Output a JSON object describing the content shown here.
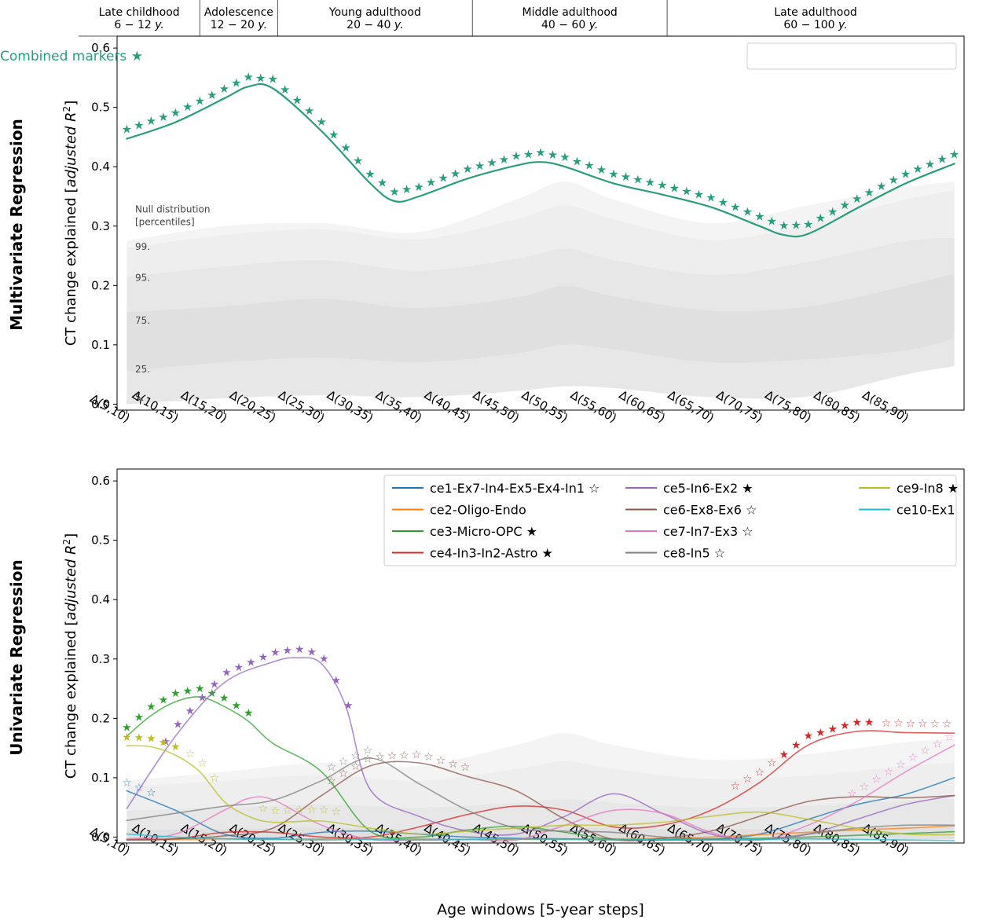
{
  "figure": {
    "stages": [
      {
        "name": "Late childhood",
        "range": "6 − 12 y.",
        "from": 5,
        "to": 12.5
      },
      {
        "name": "Adolescence",
        "range": "12 − 20 y.",
        "from": 12.5,
        "to": 20.5
      },
      {
        "name": "Young adulthood",
        "range": "20 − 40 y.",
        "from": 20.5,
        "to": 40.5
      },
      {
        "name": "Middle adulthood",
        "range": "40 − 60 y.",
        "from": 40.5,
        "to": 60.5
      },
      {
        "name": "Late adulthood",
        "range": "60 − 100 y.",
        "from": 60.5,
        "to": 90
      }
    ],
    "row_labels": {
      "top": "Multivariate Regression",
      "bottom": "Univariate Regression"
    },
    "ylabel": "CT change explained [adjusted R²]",
    "xlabel": "Age windows [5-year steps]",
    "null_title": [
      "Null distribution",
      "[percentiles]"
    ],
    "percentile_labels": [
      {
        "label": "99.",
        "y": 0.265
      },
      {
        "label": "95.",
        "y": 0.213
      },
      {
        "label": "75.",
        "y": 0.141
      },
      {
        "label": "25.",
        "y": 0.059
      },
      {
        "label": "5.",
        "y": 0.011
      }
    ]
  },
  "chart_data": [
    {
      "type": "line",
      "ylim": [
        -0.01,
        0.62
      ],
      "yticks": [
        0.0,
        0.1,
        0.2,
        0.3,
        0.4,
        0.5,
        0.6
      ],
      "x_windows": [
        "Δ(5,10)",
        "Δ(10,15)",
        "Δ(15,20)",
        "Δ(20,25)",
        "Δ(25,30)",
        "Δ(30,35)",
        "Δ(35,40)",
        "Δ(40,45)",
        "Δ(45,50)",
        "Δ(50,55)",
        "Δ(55,60)",
        "Δ(60,65)",
        "Δ(65,70)",
        "Δ(70,75)",
        "Δ(75,80)",
        "Δ(80,85)",
        "Δ(85,90)"
      ],
      "legend": {
        "placement": "top-right"
      },
      "null_bands": {
        "x": [
          5,
          15,
          25,
          35,
          45,
          50,
          55,
          65,
          75,
          85,
          90
        ],
        "p5": [
          0.0,
          0.01,
          0.015,
          0.012,
          0.022,
          0.03,
          0.027,
          0.012,
          0.013,
          0.05,
          0.064
        ],
        "p25": [
          0.055,
          0.07,
          0.078,
          0.07,
          0.085,
          0.1,
          0.092,
          0.07,
          0.075,
          0.09,
          0.11
        ],
        "p75": [
          0.155,
          0.165,
          0.178,
          0.162,
          0.18,
          0.2,
          0.182,
          0.158,
          0.165,
          0.2,
          0.22
        ],
        "p95": [
          0.215,
          0.232,
          0.243,
          0.225,
          0.245,
          0.262,
          0.243,
          0.218,
          0.24,
          0.275,
          0.28
        ],
        "p99": [
          0.263,
          0.285,
          0.295,
          0.278,
          0.312,
          0.335,
          0.312,
          0.277,
          0.303,
          0.345,
          0.36
        ],
        "max": [
          0.275,
          0.3,
          0.305,
          0.29,
          0.345,
          0.375,
          0.345,
          0.305,
          0.335,
          0.365,
          0.375
        ]
      },
      "series": [
        {
          "name": "Combined markers ★",
          "color": "#2a9d7f",
          "x": [
            5,
            10,
            15,
            17.5,
            20,
            25,
            30,
            32.5,
            35,
            40,
            45,
            47.5,
            50,
            55,
            60,
            65,
            70,
            72.5,
            75,
            80,
            85,
            90
          ],
          "y": [
            0.447,
            0.475,
            0.515,
            0.535,
            0.532,
            0.46,
            0.372,
            0.342,
            0.35,
            0.38,
            0.402,
            0.408,
            0.4,
            0.372,
            0.353,
            0.332,
            0.3,
            0.285,
            0.287,
            0.33,
            0.372,
            0.405
          ],
          "significance": [
            {
              "from": 5,
              "to": 90,
              "kind": "filled",
              "offset": 0.016
            }
          ]
        }
      ]
    },
    {
      "type": "line",
      "ylim": [
        -0.01,
        0.62
      ],
      "yticks": [
        0.0,
        0.1,
        0.2,
        0.3,
        0.4,
        0.5,
        0.6
      ],
      "x_windows": [
        "Δ(5,10)",
        "Δ(10,15)",
        "Δ(15,20)",
        "Δ(20,25)",
        "Δ(25,30)",
        "Δ(30,35)",
        "Δ(35,40)",
        "Δ(40,45)",
        "Δ(45,50)",
        "Δ(50,55)",
        "Δ(55,60)",
        "Δ(60,65)",
        "Δ(65,70)",
        "Δ(70,75)",
        "Δ(75,80)",
        "Δ(80,85)",
        "Δ(85,90)"
      ],
      "xlabel": "Age windows [5-year steps]",
      "legend": {
        "placement": "top-right",
        "columns": 3
      },
      "null_bands": {
        "x": [
          5,
          15,
          25,
          35,
          45,
          50,
          55,
          65,
          75,
          85,
          90
        ],
        "p25": [
          -0.006,
          -0.006,
          -0.005,
          -0.006,
          -0.005,
          -0.004,
          -0.005,
          -0.006,
          -0.006,
          -0.005,
          -0.004
        ],
        "p75": [
          0.012,
          0.014,
          0.016,
          0.014,
          0.016,
          0.018,
          0.016,
          0.014,
          0.015,
          0.017,
          0.018
        ],
        "p95": [
          0.045,
          0.05,
          0.055,
          0.05,
          0.058,
          0.064,
          0.058,
          0.05,
          0.053,
          0.062,
          0.065
        ],
        "p99": [
          0.085,
          0.095,
          0.105,
          0.095,
          0.115,
          0.128,
          0.115,
          0.098,
          0.104,
          0.12,
          0.125
        ],
        "max": [
          0.095,
          0.11,
          0.125,
          0.12,
          0.155,
          0.175,
          0.155,
          0.13,
          0.14,
          0.16,
          0.165
        ]
      },
      "series": [
        {
          "name": "ce1-Ex7-In4-Ex5-Ex4-In1 ☆",
          "color": "#1f77b4",
          "x": [
            5,
            10,
            15,
            20,
            25,
            30,
            35,
            40,
            45,
            50,
            55,
            60,
            65,
            70,
            75,
            80,
            85,
            90
          ],
          "y": [
            0.078,
            0.045,
            0.005,
            -0.002,
            0.008,
            0.01,
            0.005,
            0.0,
            -0.002,
            -0.003,
            -0.004,
            -0.005,
            -0.004,
            0.005,
            0.03,
            0.055,
            0.072,
            0.1
          ],
          "significance": [
            {
              "from": 5,
              "to": 7.5,
              "kind": "open",
              "offset": 0.014
            }
          ]
        },
        {
          "name": "ce2-Oligo-Endo",
          "color": "#ff7f0e",
          "x": [
            5,
            10,
            15,
            20,
            25,
            30,
            35,
            40,
            45,
            50,
            55,
            60,
            65,
            70,
            75,
            80,
            85,
            90
          ],
          "y": [
            -0.004,
            -0.004,
            -0.003,
            -0.004,
            -0.003,
            -0.003,
            -0.003,
            -0.004,
            -0.004,
            -0.004,
            -0.003,
            -0.002,
            0.0,
            0.004,
            0.008,
            0.012,
            0.015,
            0.019
          ],
          "significance": []
        },
        {
          "name": "ce3-Micro-OPC ★",
          "color": "#2ca02c",
          "x": [
            5,
            7.5,
            10,
            12.5,
            15,
            17.5,
            20,
            25,
            30,
            35,
            40,
            45,
            50,
            55,
            60,
            65,
            70,
            75,
            80,
            85,
            90
          ],
          "y": [
            0.17,
            0.205,
            0.228,
            0.236,
            0.22,
            0.195,
            0.158,
            0.11,
            0.01,
            0.0,
            0.012,
            0.018,
            0.008,
            -0.004,
            -0.004,
            -0.003,
            -0.002,
            0.0,
            0.003,
            0.006,
            0.009
          ],
          "significance": [
            {
              "from": 5,
              "to": 18.5,
              "kind": "filled",
              "offset": 0.015
            }
          ]
        },
        {
          "name": "ce4-In3-In2-Astro ★",
          "color": "#d62728",
          "x": [
            5,
            10,
            15,
            20,
            25,
            30,
            35,
            40,
            45,
            50,
            55,
            60,
            65,
            70,
            75,
            80,
            85,
            90
          ],
          "y": [
            -0.005,
            -0.003,
            0.008,
            0.008,
            0.0,
            0.0,
            0.017,
            0.038,
            0.052,
            0.045,
            0.017,
            0.02,
            0.045,
            0.092,
            0.155,
            0.178,
            0.176,
            0.175
          ],
          "significance": [
            {
              "from": 67.5,
              "to": 71.5,
              "kind": "open",
              "offset": 0.018
            },
            {
              "from": 72.5,
              "to": 82,
              "kind": "filled",
              "offset": 0.016
            },
            {
              "from": 83,
              "to": 90,
              "kind": "open",
              "offset": 0.016
            }
          ]
        },
        {
          "name": "ce5-In6-Ex2 ★",
          "color": "#9467bd",
          "x": [
            5,
            10,
            15,
            20,
            22.5,
            25,
            27.5,
            30,
            35,
            40,
            45,
            50,
            55,
            60,
            65,
            70,
            75,
            80,
            85,
            90
          ],
          "y": [
            0.048,
            0.17,
            0.26,
            0.295,
            0.302,
            0.292,
            0.22,
            0.08,
            0.035,
            0.01,
            0.005,
            0.035,
            0.073,
            0.04,
            0.005,
            -0.004,
            0.005,
            0.03,
            0.055,
            0.07
          ],
          "significance": [
            {
              "from": 9,
              "to": 28.5,
              "kind": "filled",
              "offset": 0.016
            }
          ]
        },
        {
          "name": "ce6-Ex8-Ex6 ☆",
          "color": "#8c564b",
          "x": [
            5,
            10,
            15,
            20,
            25,
            30,
            35,
            40,
            45,
            50,
            55,
            60,
            65,
            70,
            75,
            80,
            85,
            90
          ],
          "y": [
            -0.004,
            -0.003,
            0.002,
            0.015,
            0.07,
            0.12,
            0.125,
            0.102,
            0.078,
            0.03,
            -0.004,
            -0.002,
            0.01,
            0.035,
            0.06,
            0.068,
            0.066,
            0.07
          ],
          "significance": [
            {
              "from": 26,
              "to": 40,
              "kind": "open",
              "offset": 0.015
            }
          ]
        },
        {
          "name": "ce7-In7-Ex3 ☆",
          "color": "#e377c2",
          "x": [
            5,
            10,
            15,
            17.5,
            20,
            25,
            30,
            35,
            40,
            45,
            50,
            55,
            60,
            65,
            70,
            75,
            80,
            85,
            90
          ],
          "y": [
            -0.003,
            0.005,
            0.045,
            0.065,
            0.063,
            0.02,
            -0.004,
            -0.005,
            -0.004,
            -0.005,
            0.02,
            0.045,
            0.04,
            0.008,
            -0.005,
            0.02,
            0.06,
            0.11,
            0.155
          ],
          "significance": [
            {
              "from": 79.5,
              "to": 90,
              "kind": "open",
              "offset": 0.018
            }
          ]
        },
        {
          "name": "ce8-In5 ☆",
          "color": "#7f7f7f",
          "x": [
            5,
            10,
            15,
            20,
            25,
            30,
            35,
            40,
            45,
            50,
            55,
            60,
            65,
            70,
            75,
            80,
            85,
            90
          ],
          "y": [
            0.028,
            0.04,
            0.052,
            0.062,
            0.095,
            0.133,
            0.09,
            0.045,
            0.015,
            0.01,
            0.008,
            0.0,
            -0.004,
            -0.004,
            0.005,
            0.015,
            0.02,
            0.02
          ],
          "significance": [
            {
              "from": 26,
              "to": 30.5,
              "kind": "open",
              "offset": 0.016
            }
          ]
        },
        {
          "name": "ce9-In8 ★",
          "color": "#bcbd22",
          "x": [
            5,
            7.5,
            10,
            12.5,
            15,
            17.5,
            20,
            25,
            30,
            35,
            40,
            45,
            50,
            55,
            60,
            65,
            70,
            75,
            80,
            85,
            90
          ],
          "y": [
            0.154,
            0.152,
            0.138,
            0.11,
            0.06,
            0.035,
            0.025,
            0.027,
            0.015,
            0.005,
            0.01,
            0.015,
            0.02,
            0.02,
            0.025,
            0.035,
            0.042,
            0.03,
            0.015,
            0.005,
            0.004
          ],
          "significance": [
            {
              "from": 5,
              "to": 11,
              "kind": "filled",
              "offset": 0.015
            },
            {
              "from": 11.5,
              "to": 14,
              "kind": "open",
              "offset": 0.02
            },
            {
              "from": 19,
              "to": 27,
              "kind": "open",
              "offset": 0.02
            }
          ]
        },
        {
          "name": "ce10-Ex1",
          "color": "#17becf",
          "x": [
            5,
            10,
            15,
            20,
            25,
            30,
            35,
            40,
            45,
            50,
            55,
            60,
            65,
            70,
            75,
            80,
            85,
            90
          ],
          "y": [
            0.005,
            0.0,
            -0.003,
            -0.004,
            -0.005,
            -0.004,
            -0.005,
            -0.004,
            -0.003,
            -0.004,
            -0.005,
            -0.004,
            -0.005,
            -0.004,
            -0.003,
            -0.004,
            -0.005,
            -0.006
          ],
          "significance": []
        }
      ]
    }
  ]
}
